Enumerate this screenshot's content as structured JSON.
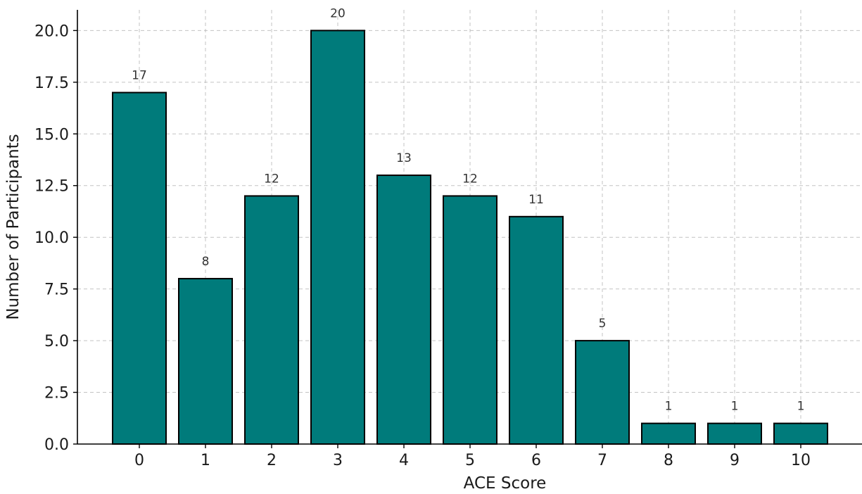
{
  "chart_data": {
    "type": "bar",
    "title": "",
    "xlabel": "ACE Score",
    "ylabel": "Number of Participants",
    "categories": [
      "0",
      "1",
      "2",
      "3",
      "4",
      "5",
      "6",
      "7",
      "8",
      "9",
      "10"
    ],
    "values": [
      17,
      8,
      12,
      20,
      13,
      12,
      11,
      5,
      1,
      1,
      1
    ],
    "data_labels": [
      "17",
      "8",
      "12",
      "20",
      "13",
      "12",
      "11",
      "5",
      "1",
      "1",
      "1"
    ],
    "ylim": [
      0,
      21
    ],
    "yticks": [
      0,
      2.5,
      5,
      7.5,
      10,
      12.5,
      15,
      17.5,
      20
    ],
    "ytick_labels": [
      "0.0",
      "2.5",
      "5.0",
      "7.5",
      "10.0",
      "12.5",
      "15.0",
      "17.5",
      "20.0"
    ],
    "grid": true,
    "legend": "none",
    "colors": {
      "bar_fill": "#007b7b",
      "bar_edge": "#000000",
      "grid": "#b0b0b0"
    }
  }
}
